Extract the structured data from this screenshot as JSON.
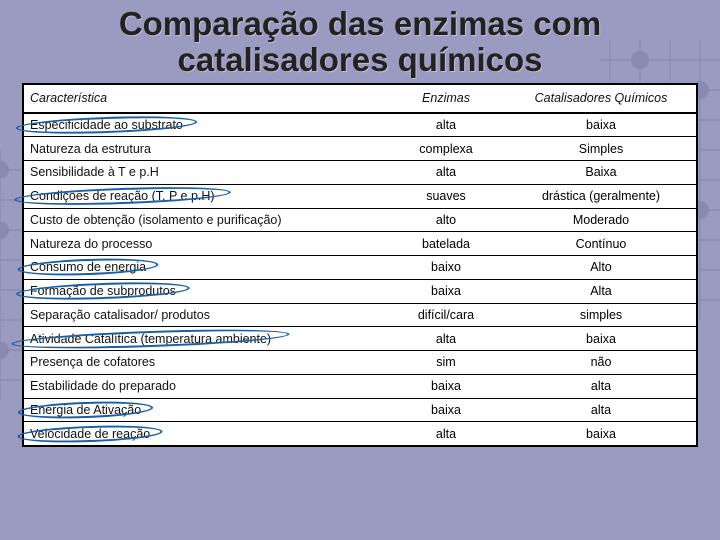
{
  "title": "Comparação das enzimas com catalisadores químicos",
  "table": {
    "columns": [
      "Característica",
      "Enzimas",
      "Catalisadores Químicos"
    ],
    "col_widths": [
      "auto",
      "120px",
      "190px"
    ],
    "header_style": {
      "italic": true,
      "fontsize_pt": 12.5
    },
    "body_fontsize_pt": 12.5,
    "highlight_color": "#1a5fa8",
    "rows": [
      {
        "c": "Especificidade ao substrato",
        "e": "alta",
        "q": "baixa",
        "hl": true
      },
      {
        "c": "Natureza da estrutura",
        "e": "complexa",
        "q": "Simples",
        "hl": false
      },
      {
        "c": "Sensibilidade à T e p.H",
        "e": "alta",
        "q": "Baixa",
        "hl": false
      },
      {
        "c": "Condições de reação (T, P e p.H)",
        "e": "suaves",
        "q": "drástica (geralmente)",
        "hl": true
      },
      {
        "c": "Custo de obtenção (isolamento e purificação)",
        "e": "alto",
        "q": "Moderado",
        "hl": false
      },
      {
        "c": "Natureza do processo",
        "e": "batelada",
        "q": "Contínuo",
        "hl": false
      },
      {
        "c": "Consumo de energia",
        "e": "baixo",
        "q": "Alto",
        "hl": true
      },
      {
        "c": "Formação de subprodutos",
        "e": "baixa",
        "q": "Alta",
        "hl": true
      },
      {
        "c": "Separação catalisador/ produtos",
        "e": "difícil/cara",
        "q": "simples",
        "hl": false
      },
      {
        "c": "Atividade Catalítica (temperatura ambiente)",
        "e": "alta",
        "q": "baixa",
        "hl": true
      },
      {
        "c": "Presença de cofatores",
        "e": "sim",
        "q": "não",
        "hl": false
      },
      {
        "c": "Estabilidade do preparado",
        "e": "baixa",
        "q": "alta",
        "hl": false
      },
      {
        "c": "Energia de Ativação",
        "e": "baixa",
        "q": "alta",
        "hl": true
      },
      {
        "c": "Velocidade de reação",
        "e": "alta",
        "q": "baixa",
        "hl": true
      }
    ]
  },
  "colors": {
    "background": "#9b9ac0",
    "pattern": "#5a5a8a",
    "table_bg": "#ffffff",
    "border": "#000000",
    "text": "#111111"
  }
}
